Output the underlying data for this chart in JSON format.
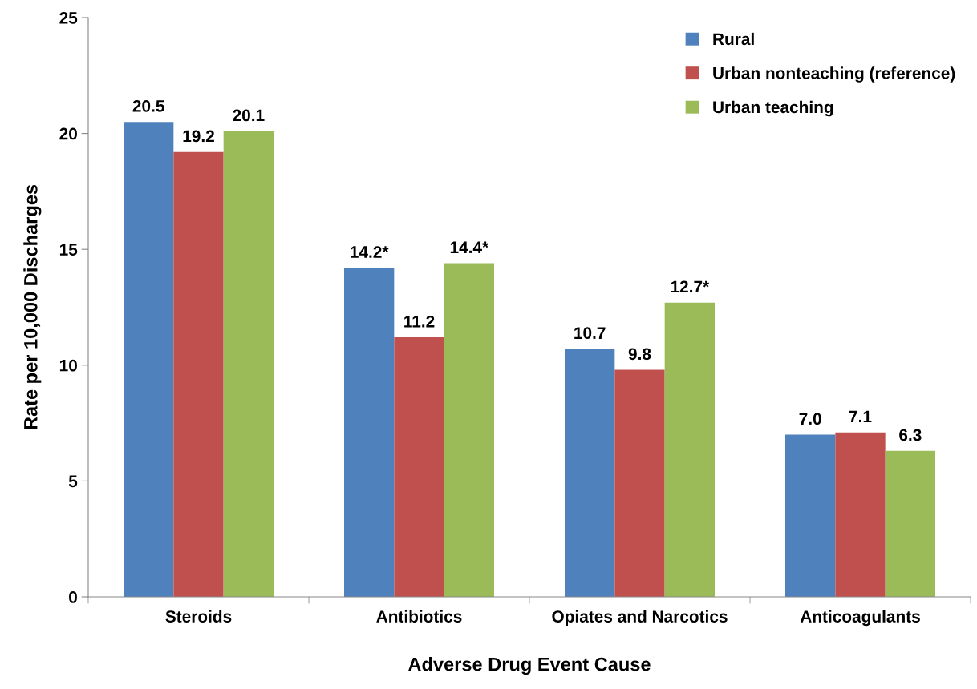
{
  "chart_data": {
    "type": "bar",
    "xlabel": "Adverse Drug Event Cause",
    "ylabel": "Rate per 10,000 Discharges",
    "categories": [
      "Steroids",
      "Antibiotics",
      "Opiates and Narcotics",
      "Anticoagulants"
    ],
    "series": [
      {
        "name": "Rural",
        "color": "#4f81bd",
        "values": [
          20.5,
          14.2,
          10.7,
          7.0
        ],
        "value_labels": [
          "20.5",
          "14.2*",
          "10.7",
          "7.0"
        ]
      },
      {
        "name": "Urban nonteaching (reference)",
        "color": "#c0504d",
        "values": [
          19.2,
          11.2,
          9.8,
          7.1
        ],
        "value_labels": [
          "19.2",
          "11.2",
          "9.8",
          "7.1"
        ]
      },
      {
        "name": "Urban teaching",
        "color": "#9bbb59",
        "values": [
          20.1,
          14.4,
          12.7,
          6.3
        ],
        "value_labels": [
          "20.1",
          "14.4*",
          "12.7*",
          "6.3"
        ]
      }
    ],
    "ylim": [
      0,
      25
    ],
    "yticks": [
      0,
      5,
      10,
      15,
      20,
      25
    ],
    "grid": false,
    "legend": "top right"
  }
}
